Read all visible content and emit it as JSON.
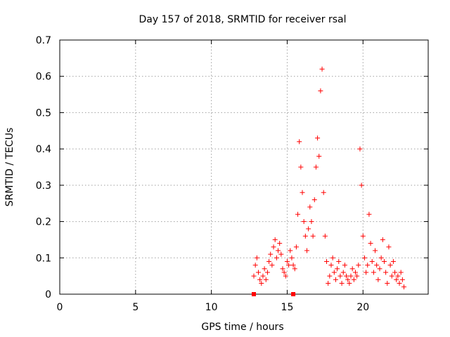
{
  "chart_data": {
    "type": "scatter",
    "title": "Day 157 of 2018, SRMTID for receiver rsal",
    "xlabel": "GPS time / hours",
    "ylabel": "SRMTID / TECUs",
    "xlim": [
      0,
      24.3
    ],
    "ylim": [
      0,
      0.7
    ],
    "xticks": [
      0,
      5,
      10,
      15,
      20
    ],
    "xtick_labels": [
      "0",
      "5",
      "10",
      "15",
      "20"
    ],
    "yticks": [
      0,
      0.1,
      0.2,
      0.3,
      0.4,
      0.5,
      0.6,
      0.7
    ],
    "ytick_labels": [
      "0",
      "0.1",
      "0.2",
      "0.3",
      "0.4",
      "0.5",
      "0.6",
      "0.7"
    ],
    "grid": true,
    "marker": "plus",
    "color": "#ff0000",
    "gap_markers": {
      "marker": "square",
      "x": [
        12.8,
        15.4
      ],
      "y": [
        0,
        0
      ]
    },
    "series": [
      {
        "name": "SRMTID",
        "x": [
          12.8,
          12.9,
          13.0,
          13.1,
          13.2,
          13.3,
          13.4,
          13.5,
          13.6,
          13.7,
          13.8,
          13.9,
          14.0,
          14.1,
          14.2,
          14.3,
          14.4,
          14.5,
          14.6,
          14.7,
          14.8,
          14.9,
          15.0,
          15.1,
          15.2,
          15.3,
          15.4,
          15.5,
          15.6,
          15.7,
          15.8,
          15.9,
          16.0,
          16.1,
          16.2,
          16.3,
          16.4,
          16.5,
          16.6,
          16.7,
          16.8,
          16.9,
          17.0,
          17.1,
          17.2,
          17.3,
          17.4,
          17.5,
          17.6,
          17.7,
          17.8,
          17.9,
          18.0,
          18.1,
          18.2,
          18.3,
          18.4,
          18.5,
          18.6,
          18.7,
          18.8,
          18.9,
          19.0,
          19.1,
          19.2,
          19.3,
          19.4,
          19.5,
          19.6,
          19.7,
          19.8,
          19.9,
          20.0,
          20.1,
          20.2,
          20.3,
          20.4,
          20.5,
          20.6,
          20.7,
          20.8,
          20.9,
          21.0,
          21.1,
          21.2,
          21.3,
          21.4,
          21.5,
          21.6,
          21.7,
          21.8,
          21.9,
          22.0,
          22.1,
          22.2,
          22.3,
          22.4,
          22.5,
          22.6,
          22.7
        ],
        "y": [
          0.05,
          0.08,
          0.1,
          0.06,
          0.04,
          0.03,
          0.05,
          0.07,
          0.04,
          0.06,
          0.09,
          0.11,
          0.08,
          0.13,
          0.15,
          0.1,
          0.12,
          0.14,
          0.11,
          0.07,
          0.06,
          0.05,
          0.09,
          0.08,
          0.12,
          0.1,
          0.08,
          0.07,
          0.13,
          0.22,
          0.42,
          0.35,
          0.28,
          0.2,
          0.16,
          0.12,
          0.18,
          0.24,
          0.2,
          0.16,
          0.26,
          0.35,
          0.43,
          0.38,
          0.56,
          0.62,
          0.28,
          0.16,
          0.09,
          0.03,
          0.05,
          0.08,
          0.1,
          0.06,
          0.04,
          0.07,
          0.09,
          0.05,
          0.03,
          0.06,
          0.08,
          0.05,
          0.04,
          0.03,
          0.05,
          0.07,
          0.04,
          0.06,
          0.05,
          0.08,
          0.4,
          0.3,
          0.16,
          0.1,
          0.06,
          0.08,
          0.22,
          0.14,
          0.09,
          0.06,
          0.12,
          0.08,
          0.04,
          0.07,
          0.1,
          0.15,
          0.09,
          0.06,
          0.03,
          0.13,
          0.08,
          0.05,
          0.09,
          0.06,
          0.04,
          0.05,
          0.03,
          0.06,
          0.04,
          0.02
        ]
      }
    ]
  }
}
